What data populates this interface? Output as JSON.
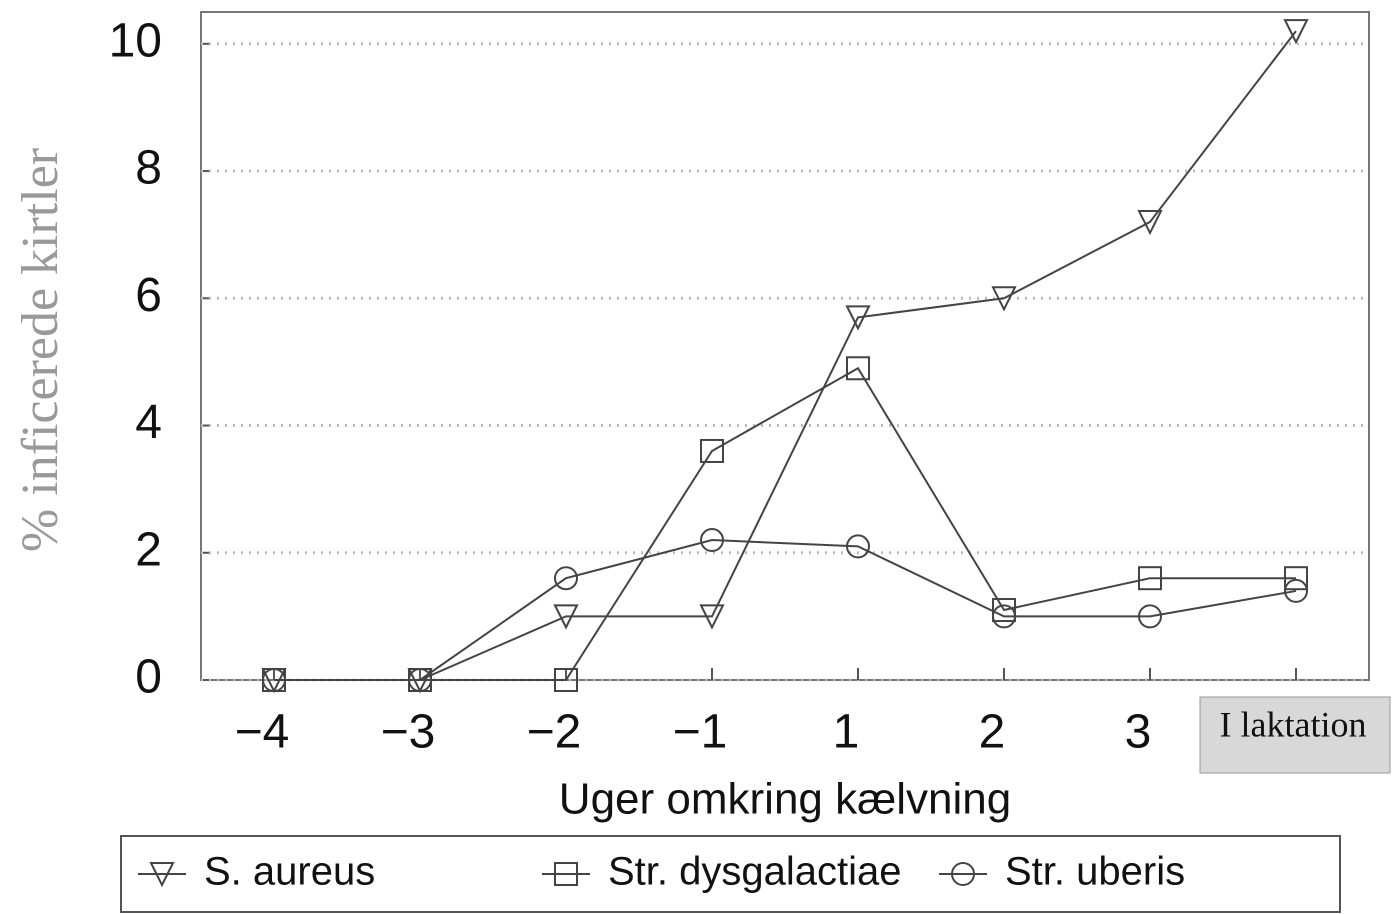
{
  "chart_data": {
    "type": "line",
    "y_label": "% inficerede kirtler",
    "x_label": "Uger omkring kælvning",
    "categories": [
      "−4",
      "−3",
      "−2",
      "−1",
      "1",
      "2",
      "3",
      "I laktation"
    ],
    "series": [
      {
        "name": "S. aureus",
        "color": "#444444",
        "marker": "triangle-down",
        "values": [
          0,
          0,
          1.0,
          1.0,
          5.7,
          6.0,
          7.2,
          10.2
        ]
      },
      {
        "name": "Str. dysgalactiae",
        "color": "#444444",
        "marker": "square",
        "values": [
          0,
          0,
          0,
          3.6,
          4.9,
          1.1,
          1.6,
          1.6
        ]
      },
      {
        "name": "Str. uberis",
        "color": "#444444",
        "marker": "circle",
        "values": [
          0,
          0,
          1.6,
          2.2,
          2.1,
          1.0,
          1.0,
          1.4
        ]
      }
    ],
    "ylim": [
      0,
      10.5
    ],
    "yticks": [
      0,
      2,
      4,
      6,
      8,
      10
    ],
    "grid": true
  }
}
